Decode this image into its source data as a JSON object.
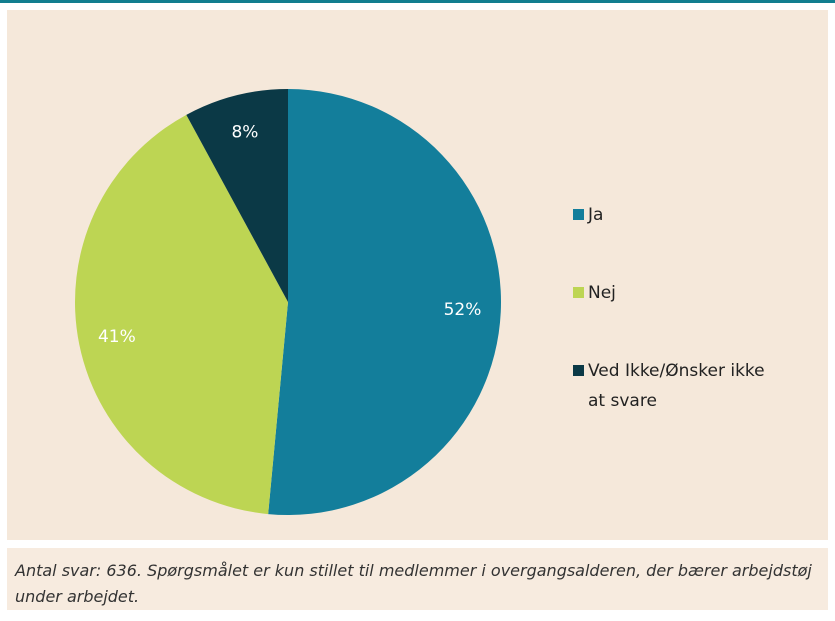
{
  "chart_data": {
    "type": "pie",
    "categories": [
      "Ja",
      "Nej",
      "Ved Ikke/Ønsker ikke at svare"
    ],
    "values": [
      52,
      41,
      8
    ],
    "value_labels": [
      "52%",
      "41%",
      "8%"
    ],
    "colors": [
      "#137e9b",
      "#bdd553",
      "#0b3946"
    ],
    "legend": "right",
    "caption": "Antal svar: 636. Spørgsmålet er kun stillet til medlemmer i overgangsalderen, der bærer arbejdstøj under arbejdet."
  }
}
